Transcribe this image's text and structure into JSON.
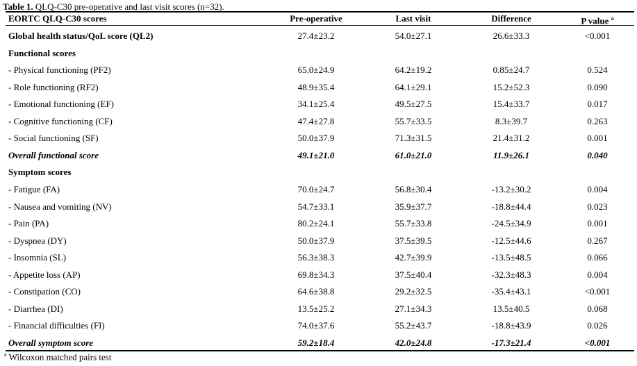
{
  "caption": {
    "label": "Table 1.",
    "text": " QLQ-C30 pre-operative and last visit scores (n=32)."
  },
  "header": {
    "col0": "EORTC QLQ-C30 scores",
    "col1": "Pre-operative",
    "col2": "Last visit",
    "col3": "Difference",
    "col4": "P value",
    "col4_sup": "a"
  },
  "rows": [
    {
      "type": "bold",
      "label": "Global health status/QoL score (QL2)",
      "pre": "27.4±23.2",
      "last": "54.0±27.1",
      "diff": "26.6±33.3",
      "p": "<0.001"
    },
    {
      "type": "section",
      "label": "Functional scores"
    },
    {
      "type": "item",
      "label": "- Physical functioning (PF2)",
      "pre": "65.0±24.9",
      "last": "64.2±19.2",
      "diff": "0.85±24.7",
      "p": "0.524"
    },
    {
      "type": "item",
      "label": "- Role functioning (RF2)",
      "pre": "48.9±35.4",
      "last": "64.1±29.1",
      "diff": "15.2±52.3",
      "p": "0.090"
    },
    {
      "type": "item",
      "label": "- Emotional functioning (EF)",
      "pre": "34.1±25.4",
      "last": "49.5±27.5",
      "diff": "15.4±33.7",
      "p": "0.017"
    },
    {
      "type": "item",
      "label": "- Cognitive functioning (CF)",
      "pre": "47.4±27.8",
      "last": "55.7±33.5",
      "diff": "8.3±39.7",
      "p": "0.263"
    },
    {
      "type": "item",
      "label": "- Social functioning (SF)",
      "pre": "50.0±37.9",
      "last": "71.3±31.5",
      "diff": "21.4±31.2",
      "p": "0.001"
    },
    {
      "type": "overall",
      "label": "Overall functional score",
      "pre": "49.1±21.0",
      "last": "61.0±21.0",
      "diff": "11.9±26.1",
      "p": "0.040"
    },
    {
      "type": "section",
      "label": "Symptom scores"
    },
    {
      "type": "item",
      "label": "- Fatigue (FA)",
      "pre": "70.0±24.7",
      "last": "56.8±30.4",
      "diff": "-13.2±30.2",
      "p": "0.004"
    },
    {
      "type": "item",
      "label": "- Nausea and vomiting (NV)",
      "pre": "54.7±33.1",
      "last": "35.9±37.7",
      "diff": "-18.8±44.4",
      "p": "0.023"
    },
    {
      "type": "item",
      "label": "- Pain (PA)",
      "pre": "80.2±24.1",
      "last": "55.7±33.8",
      "diff": "-24.5±34.9",
      "p": "0.001"
    },
    {
      "type": "item",
      "label": "- Dyspnea (DY)",
      "pre": "50.0±37.9",
      "last": "37.5±39.5",
      "diff": "-12.5±44.6",
      "p": "0.267"
    },
    {
      "type": "item",
      "label": "- Insomnia (SL)",
      "pre": "56.3±38.3",
      "last": "42.7±39.9",
      "diff": "-13.5±48.5",
      "p": "0.066"
    },
    {
      "type": "item",
      "label": "- Appetite loss (AP)",
      "pre": "69.8±34.3",
      "last": "37.5±40.4",
      "diff": "-32.3±48.3",
      "p": "0.004"
    },
    {
      "type": "item",
      "label": "- Constipation (CO)",
      "pre": "64.6±38.8",
      "last": "29.2±32.5",
      "diff": "-35.4±43.1",
      "p": "<0.001"
    },
    {
      "type": "item",
      "label": "- Diarrhea (DI)",
      "pre": "13.5±25.2",
      "last": "27.1±34.3",
      "diff": "13.5±40.5",
      "p": "0.068"
    },
    {
      "type": "item",
      "label": "- Financial difficulties (FI)",
      "pre": "74.0±37.6",
      "last": "55.2±43.7",
      "diff": "-18.8±43.9",
      "p": "0.026"
    },
    {
      "type": "overall",
      "label": "Overall symptom score",
      "pre": "59.2±18.4",
      "last": "42.0±24.8",
      "diff": "-17.3±21.4",
      "p": "<0.001"
    }
  ],
  "footnote": {
    "sup": "a",
    "text": " Wilcoxon matched pairs test"
  }
}
